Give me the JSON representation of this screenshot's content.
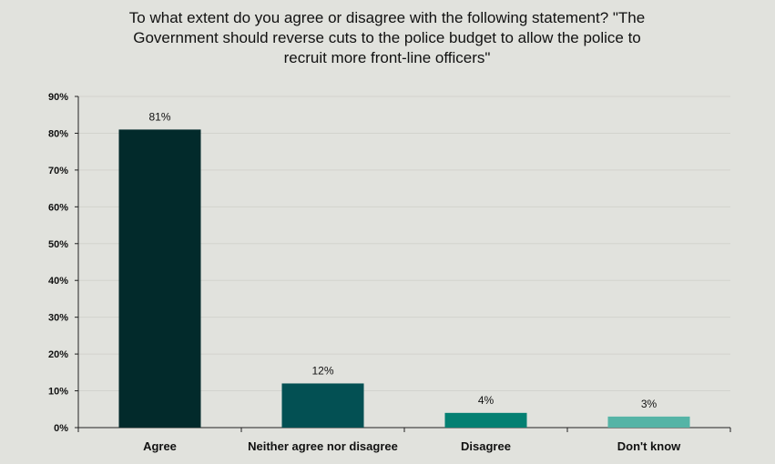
{
  "chart_data": {
    "type": "bar",
    "title_lines": [
      "To what extent do you agree or disagree with the following statement? \"The",
      "Government should reverse cuts to the police budget to allow the police to",
      "recruit more front-line officers\""
    ],
    "categories": [
      "Agree",
      "Neither agree nor disagree",
      "Disagree",
      "Don't know"
    ],
    "values": [
      81,
      12,
      4,
      3
    ],
    "data_labels": [
      "81%",
      "12%",
      "4%",
      "3%"
    ],
    "bar_colors": [
      "#022a2b",
      "#035053",
      "#048072",
      "#55b4a6"
    ],
    "ylim": [
      0,
      90
    ],
    "y_ticks": [
      0,
      10,
      20,
      30,
      40,
      50,
      60,
      70,
      80,
      90
    ],
    "y_tick_labels": [
      "0%",
      "10%",
      "20%",
      "30%",
      "40%",
      "50%",
      "60%",
      "70%",
      "80%",
      "90%"
    ],
    "xlabel": "",
    "ylabel": "",
    "grid": true,
    "legend": false
  }
}
